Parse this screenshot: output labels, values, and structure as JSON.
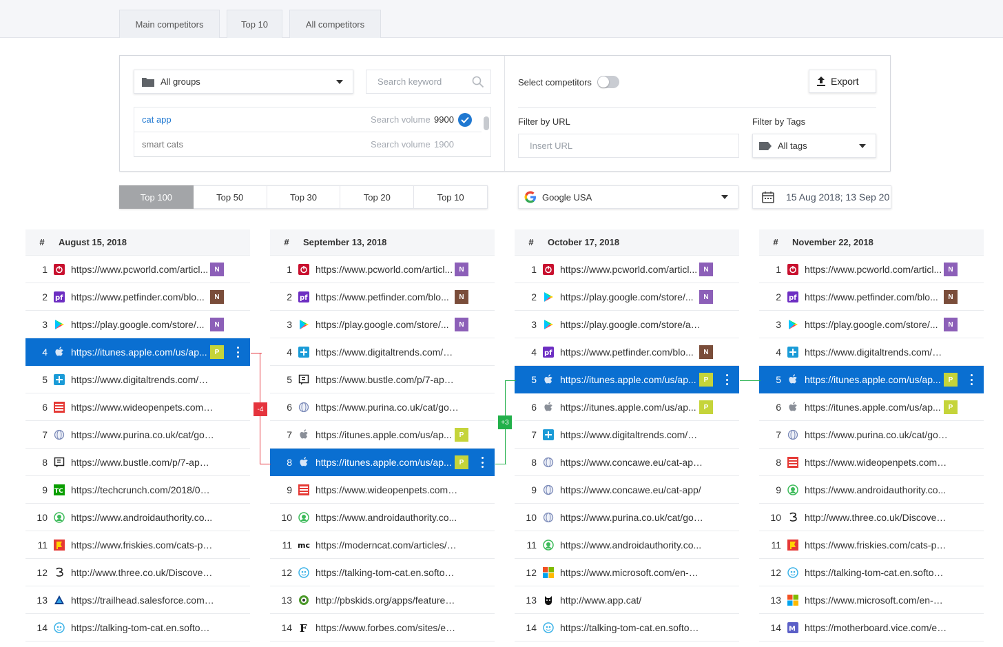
{
  "top_tabs": [
    "Main competitors",
    "Top 10",
    "All competitors"
  ],
  "filters": {
    "group_select": "All groups",
    "search_placeholder": "Search keyword",
    "keywords": [
      {
        "name": "cat app",
        "sv_label": "Search volume",
        "volume": "9900",
        "selected": true
      },
      {
        "name": "smart cats",
        "sv_label": "Search volume",
        "volume": "1900",
        "selected": false
      }
    ],
    "select_competitors_label": "Select competitors",
    "export_label": "Export",
    "filter_url_label": "Filter by URL",
    "url_placeholder": "Insert URL",
    "filter_tags_label": "Filter by Tags",
    "tags_select": "All tags"
  },
  "top_n": [
    "Top 100",
    "Top 50",
    "Top 30",
    "Top 20",
    "Top 10"
  ],
  "search_engine": "Google USA",
  "date_range": "15 Aug 2018; 13 Sep 20",
  "accent_color": "#0a6fd1",
  "columns": [
    {
      "hash": "#",
      "date": "August 15, 2018",
      "rows": [
        {
          "n": "1",
          "icon": "pcworld",
          "url": "https://www.pcworld.com/articl...",
          "badge": "N"
        },
        {
          "n": "2",
          "icon": "petfinder",
          "url": "https://www.petfinder.com/blo...",
          "badge": "N2"
        },
        {
          "n": "3",
          "icon": "googleplay",
          "url": "https://play.google.com/store/...",
          "badge": "N"
        },
        {
          "n": "4",
          "icon": "apple",
          "url": "https://itunes.apple.com/us/ap...",
          "badge": "P",
          "hl": true
        },
        {
          "n": "5",
          "icon": "digitaltrends",
          "url": "https://www.digitaltrends.com/m..."
        },
        {
          "n": "6",
          "icon": "wideopenpets",
          "url": "https://www.wideopenpets.com/t..."
        },
        {
          "n": "7",
          "icon": "globe",
          "url": "https://www.purina.co.uk/cat/go-..."
        },
        {
          "n": "8",
          "icon": "bustle",
          "url": "https://www.bustle.com/p/7-apps..."
        },
        {
          "n": "9",
          "icon": "techcrunch",
          "url": "https://techcrunch.com/2018/07/..."
        },
        {
          "n": "10",
          "icon": "androidauthority",
          "url": "https://www.androidauthority.co..."
        },
        {
          "n": "11",
          "icon": "friskies",
          "url": "https://www.friskies.com/cats-play/"
        },
        {
          "n": "12",
          "icon": "three",
          "url": "http://www.three.co.uk/Discover/..."
        },
        {
          "n": "13",
          "icon": "trailhead",
          "url": "https://trailhead.salesforce.com/e..."
        },
        {
          "n": "14",
          "icon": "talkingtom",
          "url": "https://talking-tom-cat.en.softoni..."
        }
      ]
    },
    {
      "hash": "#",
      "date": "September 13, 2018",
      "rows": [
        {
          "n": "1",
          "icon": "pcworld",
          "url": "https://www.pcworld.com/articl...",
          "badge": "N"
        },
        {
          "n": "2",
          "icon": "petfinder",
          "url": "https://www.petfinder.com/blo...",
          "badge": "N2"
        },
        {
          "n": "3",
          "icon": "googleplay",
          "url": "https://play.google.com/store/...",
          "badge": "N"
        },
        {
          "n": "4",
          "icon": "digitaltrends",
          "url": "https://www.digitaltrends.com/m..."
        },
        {
          "n": "5",
          "icon": "bustle",
          "url": "https://www.bustle.com/p/7-apps..."
        },
        {
          "n": "6",
          "icon": "globe",
          "url": "https://www.purina.co.uk/cat/go-..."
        },
        {
          "n": "7",
          "icon": "apple",
          "url": "https://itunes.apple.com/us/ap...",
          "badge": "P"
        },
        {
          "n": "8",
          "icon": "apple",
          "url": "https://itunes.apple.com/us/ap...",
          "badge": "P",
          "hl": true
        },
        {
          "n": "9",
          "icon": "wideopenpets",
          "url": "https://www.wideopenpets.com/t..."
        },
        {
          "n": "10",
          "icon": "androidauthority",
          "url": "https://www.androidauthority.co..."
        },
        {
          "n": "11",
          "icon": "moderncat",
          "url": "https://moderncat.com/articles/a..."
        },
        {
          "n": "12",
          "icon": "talkingtom",
          "url": "https://talking-tom-cat.en.softoni..."
        },
        {
          "n": "13",
          "icon": "pbskids",
          "url": "http://pbskids.org/apps/features/..."
        },
        {
          "n": "14",
          "icon": "forbes",
          "url": "https://www.forbes.com/sites/ed..."
        }
      ]
    },
    {
      "hash": "#",
      "date": "October 17, 2018",
      "rows": [
        {
          "n": "1",
          "icon": "pcworld",
          "url": "https://www.pcworld.com/articl...",
          "badge": "N"
        },
        {
          "n": "2",
          "icon": "googleplay",
          "url": "https://play.google.com/store/...",
          "badge": "N"
        },
        {
          "n": "3",
          "icon": "googleplay",
          "url": "https://play.google.com/store/ap..."
        },
        {
          "n": "4",
          "icon": "petfinder",
          "url": "https://www.petfinder.com/blo...",
          "badge": "N2"
        },
        {
          "n": "5",
          "icon": "apple",
          "url": "https://itunes.apple.com/us/ap...",
          "badge": "P",
          "hl": true
        },
        {
          "n": "6",
          "icon": "apple",
          "url": "https://itunes.apple.com/us/ap...",
          "badge": "P"
        },
        {
          "n": "7",
          "icon": "digitaltrends",
          "url": "https://www.digitaltrends.com/m..."
        },
        {
          "n": "8",
          "icon": "globe",
          "url": "https://www.concawe.eu/cat-app/..."
        },
        {
          "n": "9",
          "icon": "globe",
          "url": "https://www.concawe.eu/cat-app/"
        },
        {
          "n": "10",
          "icon": "globe",
          "url": "https://www.purina.co.uk/cat/go-..."
        },
        {
          "n": "11",
          "icon": "androidauthority",
          "url": "https://www.androidauthority.co..."
        },
        {
          "n": "12",
          "icon": "microsoft",
          "url": "https://www.microsoft.com/en-us..."
        },
        {
          "n": "13",
          "icon": "appcat",
          "url": "http://www.app.cat/"
        },
        {
          "n": "14",
          "icon": "talkingtom",
          "url": "https://talking-tom-cat.en.softoni..."
        }
      ]
    },
    {
      "hash": "#",
      "date": "November 22, 2018",
      "rows": [
        {
          "n": "1",
          "icon": "pcworld",
          "url": "https://www.pcworld.com/articl...",
          "badge": "N"
        },
        {
          "n": "2",
          "icon": "petfinder",
          "url": "https://www.petfinder.com/blo...",
          "badge": "N2"
        },
        {
          "n": "3",
          "icon": "googleplay",
          "url": "https://play.google.com/store/...",
          "badge": "N"
        },
        {
          "n": "4",
          "icon": "digitaltrends",
          "url": "https://www.digitaltrends.com/m..."
        },
        {
          "n": "5",
          "icon": "apple",
          "url": "https://itunes.apple.com/us/ap...",
          "badge": "P",
          "hl": true
        },
        {
          "n": "6",
          "icon": "apple",
          "url": "https://itunes.apple.com/us/ap...",
          "badge": "P"
        },
        {
          "n": "7",
          "icon": "globe",
          "url": "https://www.purina.co.uk/cat/go-..."
        },
        {
          "n": "8",
          "icon": "wideopenpets",
          "url": "https://www.wideopenpets.com/t..."
        },
        {
          "n": "9",
          "icon": "androidauthority",
          "url": "https://www.androidauthority.co..."
        },
        {
          "n": "10",
          "icon": "three",
          "url": "http://www.three.co.uk/Discover/..."
        },
        {
          "n": "11",
          "icon": "friskies",
          "url": "https://www.friskies.com/cats-play/"
        },
        {
          "n": "12",
          "icon": "talkingtom",
          "url": "https://talking-tom-cat.en.softoni..."
        },
        {
          "n": "13",
          "icon": "microsoft",
          "url": "https://www.microsoft.com/en-us..."
        },
        {
          "n": "14",
          "icon": "motherboard",
          "url": "https://motherboard.vice.com/en..."
        }
      ]
    }
  ],
  "changes": [
    {
      "label": "-4",
      "color": "#e5343d"
    },
    {
      "label": "+3",
      "color": "#22b04a"
    }
  ]
}
